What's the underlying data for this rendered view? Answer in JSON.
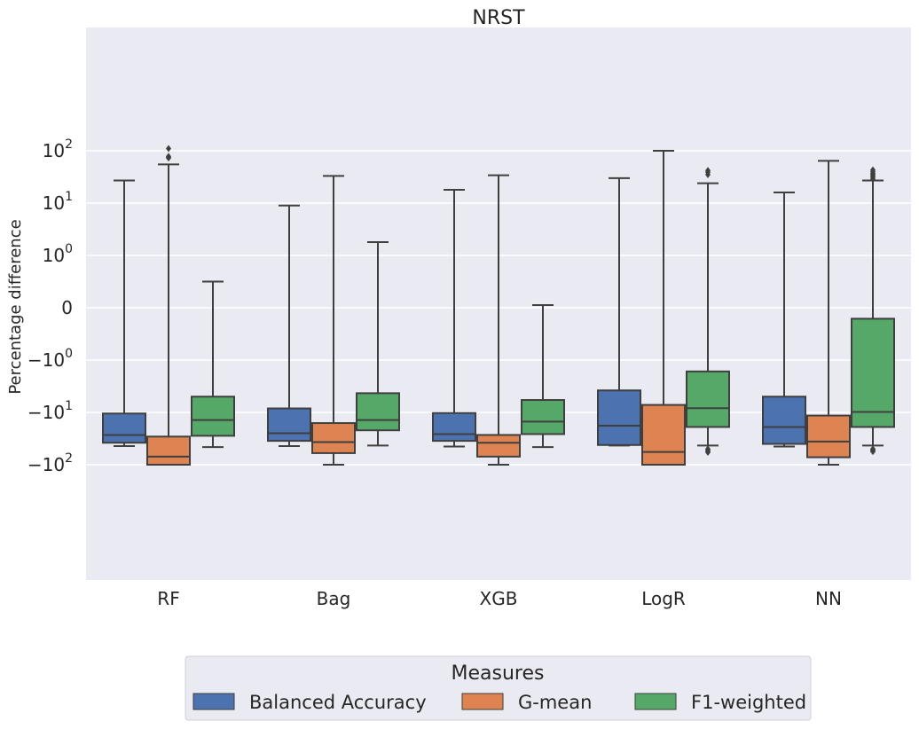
{
  "chart_data": {
    "type": "box",
    "title": "NRST",
    "ylabel": "Percentage difference",
    "xlabel": "",
    "yscale": "symlog",
    "categories": [
      "RF",
      "Bag",
      "XGB",
      "LogR",
      "NN"
    ],
    "y_ticks": [
      {
        "value": 100,
        "base": "10",
        "exp": "2",
        "sign": ""
      },
      {
        "value": 10,
        "base": "10",
        "exp": "1",
        "sign": ""
      },
      {
        "value": 1,
        "base": "10",
        "exp": "0",
        "sign": ""
      },
      {
        "value": 0,
        "base": "0",
        "exp": "",
        "sign": ""
      },
      {
        "value": -1,
        "base": "10",
        "exp": "0",
        "sign": "−"
      },
      {
        "value": -10,
        "base": "10",
        "exp": "1",
        "sign": "−"
      },
      {
        "value": -100,
        "base": "10",
        "exp": "2",
        "sign": "−"
      }
    ],
    "legend": {
      "title": "Measures",
      "position": "below"
    },
    "grid": true,
    "series": [
      {
        "name": "Balanced Accuracy",
        "color": "#4c72b0",
        "boxes": [
          {
            "whisker_low": -44,
            "q1": -38,
            "median": -27,
            "q3": -10.5,
            "whisker_high": 27,
            "outliers": []
          },
          {
            "whisker_low": -44,
            "q1": -35,
            "median": -25,
            "q3": -8.4,
            "whisker_high": 9,
            "outliers": []
          },
          {
            "whisker_low": -45,
            "q1": -35,
            "median": -26,
            "q3": -10.3,
            "whisker_high": 18,
            "outliers": []
          },
          {
            "whisker_low": -43,
            "q1": -42,
            "median": -18,
            "q3": -3.8,
            "whisker_high": 30,
            "outliers": []
          },
          {
            "whisker_low": -45,
            "q1": -40,
            "median": -19,
            "q3": -5.0,
            "whisker_high": 16,
            "outliers": []
          }
        ]
      },
      {
        "name": "G-mean",
        "color": "#dd8452",
        "boxes": [
          {
            "whisker_low": -100,
            "q1": -100,
            "median": -70,
            "q3": -29,
            "whisker_high": 55,
            "outliers": [
              110,
              78,
              75,
              73
            ]
          },
          {
            "whisker_low": -100,
            "q1": -60,
            "median": -37,
            "q3": -16,
            "whisker_high": 33,
            "outliers": []
          },
          {
            "whisker_low": -100,
            "q1": -70,
            "median": -38,
            "q3": -27,
            "whisker_high": 34,
            "outliers": []
          },
          {
            "whisker_low": -100,
            "q1": -100,
            "median": -57,
            "q3": -7.2,
            "whisker_high": 100,
            "outliers": []
          },
          {
            "whisker_low": -100,
            "q1": -72,
            "median": -36,
            "q3": -11.5,
            "whisker_high": 64,
            "outliers": []
          }
        ]
      },
      {
        "name": "F1-weighted",
        "color": "#55a868",
        "boxes": [
          {
            "whisker_low": -46,
            "q1": -28,
            "median": -14,
            "q3": -5.0,
            "whisker_high": 0.5,
            "outliers": []
          },
          {
            "whisker_low": -43,
            "q1": -22,
            "median": -14,
            "q3": -4.3,
            "whisker_high": 1.8,
            "outliers": []
          },
          {
            "whisker_low": -46,
            "q1": -26,
            "median": -15,
            "q3": -5.8,
            "whisker_high": 0.05,
            "outliers": []
          },
          {
            "whisker_low": -43,
            "q1": -19,
            "median": -8.3,
            "q3": -1.65,
            "whisker_high": 24,
            "outliers": [
              -50,
              -53,
              -56,
              -58,
              35,
              39,
              42
            ]
          },
          {
            "whisker_low": -43,
            "q1": -19,
            "median": -9.8,
            "q3": -0.21,
            "whisker_high": 27,
            "outliers": [
              -50,
              -52,
              -54,
              -56,
              29,
              31,
              33,
              35,
              37,
              40,
              43
            ]
          }
        ]
      }
    ]
  }
}
